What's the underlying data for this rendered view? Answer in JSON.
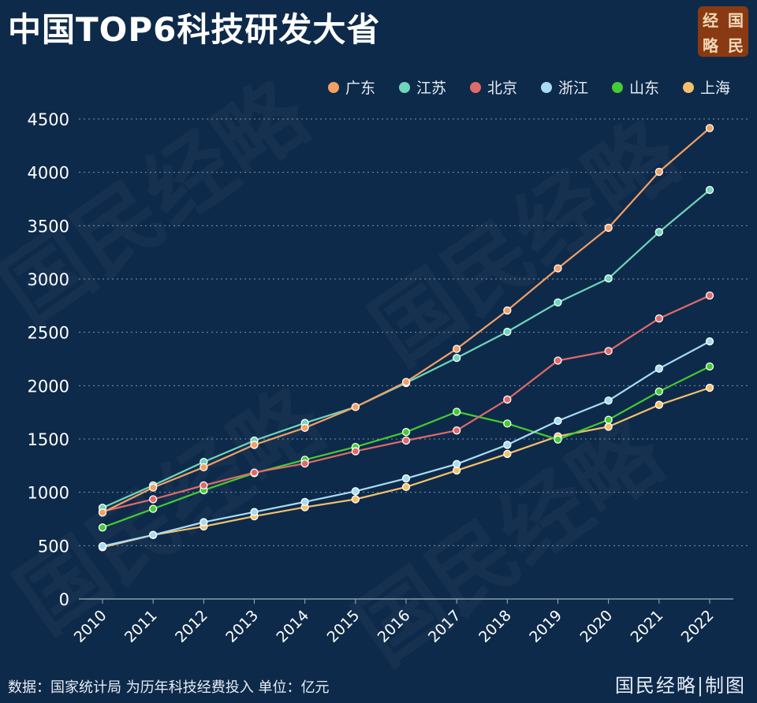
{
  "header": {
    "title": "中国TOP6科技研发大省",
    "logo_chars": [
      "经",
      "国",
      "略",
      "民"
    ]
  },
  "footer": {
    "source": "数据：国家统计局 为历年科技经费投入 单位：亿元",
    "brand": "国民经略|制图"
  },
  "watermark": "国民经略",
  "chart_data": {
    "type": "line",
    "title": "中国TOP6科技研发大省",
    "xlabel": "",
    "ylabel": "",
    "x": [
      "2010",
      "2011",
      "2012",
      "2013",
      "2014",
      "2015",
      "2016",
      "2017",
      "2018",
      "2019",
      "2020",
      "2021",
      "2022"
    ],
    "yticks": [
      "0",
      "500",
      "1000",
      "1500",
      "2000",
      "2500",
      "3000",
      "3500",
      "4000",
      "4500"
    ],
    "ylim": [
      0,
      4500
    ],
    "grid": "horizontal dotted",
    "legend_position": "top-right",
    "series": [
      {
        "name": "广东",
        "color": "#f2a064",
        "values": [
          810,
          1045,
          1235,
          1445,
          1605,
          1800,
          2035,
          2345,
          2705,
          3100,
          3480,
          4005,
          4415
        ]
      },
      {
        "name": "江苏",
        "color": "#6fd6bb",
        "values": [
          855,
          1065,
          1285,
          1485,
          1650,
          1800,
          2025,
          2260,
          2505,
          2780,
          3005,
          3440,
          3835
        ]
      },
      {
        "name": "北京",
        "color": "#e06a6a",
        "values": [
          820,
          935,
          1065,
          1185,
          1270,
          1385,
          1485,
          1580,
          1870,
          2235,
          2325,
          2630,
          2845
        ]
      },
      {
        "name": "浙江",
        "color": "#a8dcf2",
        "values": [
          495,
          600,
          720,
          815,
          910,
          1010,
          1130,
          1265,
          1445,
          1670,
          1860,
          2160,
          2415
        ]
      },
      {
        "name": "山东",
        "color": "#44cc33",
        "values": [
          670,
          845,
          1020,
          1180,
          1305,
          1425,
          1565,
          1755,
          1645,
          1495,
          1680,
          1945,
          2180
        ]
      },
      {
        "name": "上海",
        "color": "#f4c16a",
        "values": [
          485,
          600,
          680,
          775,
          860,
          935,
          1050,
          1205,
          1360,
          1525,
          1615,
          1820,
          1980
        ]
      }
    ]
  }
}
